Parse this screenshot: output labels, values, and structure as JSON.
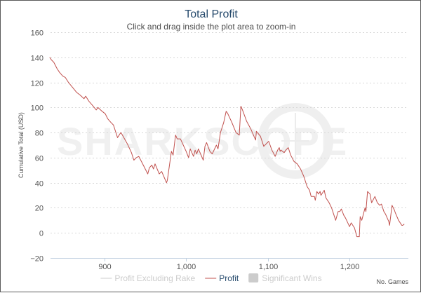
{
  "chart_data": {
    "type": "line",
    "title": "Total Profit",
    "subtitle": "Click and drag inside the plot area to zoom-in",
    "xlabel": "No. Games",
    "ylabel": "Cumulative Total (USD)",
    "xlim": [
      834,
      1272
    ],
    "ylim": [
      -20,
      160
    ],
    "xticks": [
      900,
      1000,
      1100,
      1200
    ],
    "xtick_labels": [
      "900",
      "1,000",
      "1,100",
      "1,200"
    ],
    "yticks": [
      -20,
      0,
      20,
      40,
      60,
      80,
      100,
      120,
      140,
      160
    ],
    "ytick_labels": [
      "−20",
      "0",
      "20",
      "40",
      "60",
      "80",
      "100",
      "120",
      "140",
      "160"
    ],
    "grid": true,
    "legend_position": "bottom",
    "legend": [
      {
        "name": "Profit Excluding Rake",
        "color": "#cccccc",
        "symbol": "line",
        "active": false
      },
      {
        "name": "Profit",
        "color": "#c0504d",
        "symbol": "line",
        "active": true
      },
      {
        "name": "Significant Wins",
        "color": "#cccccc",
        "symbol": "box",
        "active": false
      }
    ],
    "series": [
      {
        "name": "Profit",
        "color": "#c0504d",
        "x": [
          833,
          835,
          838,
          842,
          845,
          849,
          852,
          856,
          861,
          866,
          870,
          875,
          877,
          881,
          885,
          890,
          892,
          897,
          901,
          904,
          908,
          911,
          916,
          920,
          922,
          928,
          933,
          936,
          939,
          942,
          946,
          953,
          955,
          958,
          960,
          962,
          967,
          970,
          976,
          977,
          982,
          984,
          987,
          989,
          993,
          1000,
          1003,
          1005,
          1009,
          1011,
          1013,
          1015,
          1021,
          1023,
          1025,
          1029,
          1032,
          1037,
          1039,
          1042,
          1046,
          1049,
          1051,
          1056,
          1061,
          1065,
          1067,
          1069,
          1074,
          1079,
          1085,
          1086,
          1091,
          1095,
          1101,
          1105,
          1109,
          1112,
          1114,
          1115,
          1116,
          1120,
          1122,
          1125,
          1128,
          1132,
          1136,
          1140,
          1144,
          1148,
          1151,
          1153,
          1157,
          1158,
          1160,
          1162,
          1164,
          1165,
          1169,
          1171,
          1175,
          1178,
          1183,
          1186,
          1188,
          1190,
          1193,
          1195,
          1200,
          1202,
          1206,
          1209,
          1212,
          1213,
          1215,
          1219,
          1220,
          1222,
          1225,
          1227,
          1231,
          1234,
          1237,
          1239,
          1242,
          1244,
          1248,
          1249,
          1252,
          1255,
          1256,
          1260,
          1264,
          1265,
          1267
        ],
        "y": [
          140,
          138,
          136,
          131,
          128,
          125,
          124,
          120,
          116,
          112,
          110,
          107,
          109,
          105,
          102,
          98,
          100,
          97,
          95,
          91,
          88,
          86,
          76,
          80,
          78,
          71,
          64,
          58,
          60,
          61,
          56,
          47,
          52,
          54,
          51,
          55,
          47,
          49,
          40,
          42,
          65,
          62,
          78,
          75,
          75,
          65,
          60,
          67,
          61,
          66,
          63,
          67,
          58,
          69,
          72,
          65,
          63,
          70,
          67,
          80,
          88,
          97,
          95,
          88,
          80,
          78,
          101,
          98,
          89,
          83,
          74,
          81,
          77,
          69,
          73,
          66,
          61,
          66,
          68,
          65,
          66,
          64,
          66,
          68,
          62,
          57,
          55,
          51,
          45,
          37,
          34,
          29,
          29,
          26,
          33,
          31,
          33,
          30,
          34,
          28,
          24,
          20,
          10,
          17,
          17,
          19,
          14,
          12,
          5,
          8,
          4,
          -3,
          -3,
          13,
          10,
          20,
          17,
          33,
          31,
          24,
          29,
          24,
          22,
          23,
          17,
          15,
          9,
          6,
          22,
          18,
          16,
          10,
          6,
          6,
          7
        ]
      }
    ]
  },
  "watermark": "SHARKSCOPE"
}
